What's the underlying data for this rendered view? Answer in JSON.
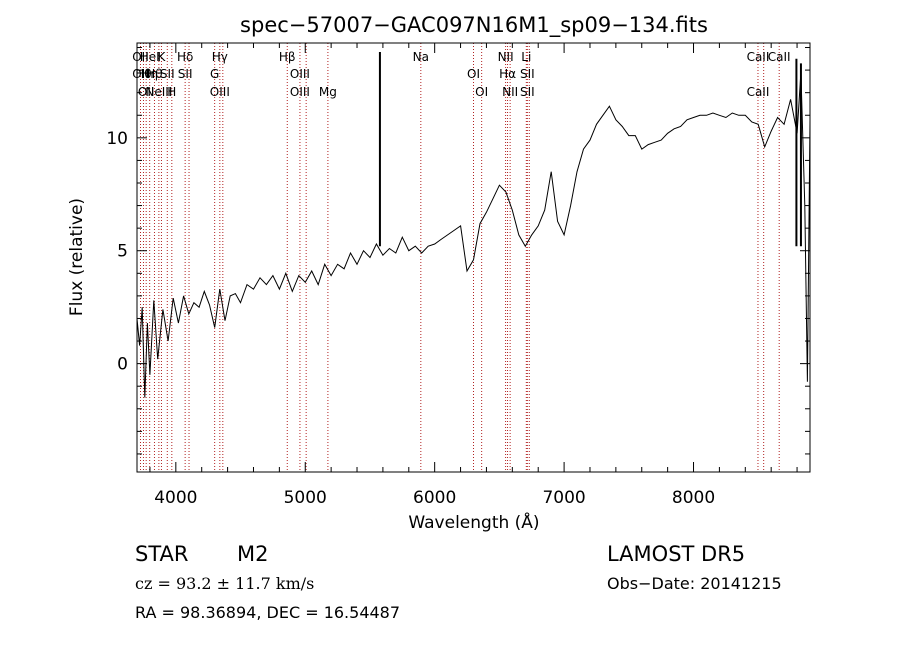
{
  "chart_data": {
    "type": "line",
    "title": "spec−57007−GAC097N16M1_sp09−134.fits",
    "xlabel": "Wavelength (Å)",
    "ylabel": "Flux (relative)",
    "xlim": [
      3700,
      8900
    ],
    "ylim": [
      -4.8,
      14.2
    ],
    "xticks": [
      4000,
      5000,
      6000,
      7000,
      8000
    ],
    "yticks": [
      0,
      5,
      10
    ],
    "grid": false,
    "line_color": "#000000",
    "marker_color": "#b22222",
    "spectrum": {
      "x": [
        3700,
        3720,
        3740,
        3760,
        3780,
        3800,
        3830,
        3860,
        3900,
        3940,
        3980,
        4020,
        4060,
        4100,
        4140,
        4180,
        4220,
        4260,
        4300,
        4340,
        4380,
        4420,
        4460,
        4500,
        4550,
        4600,
        4650,
        4700,
        4750,
        4800,
        4850,
        4900,
        4950,
        5000,
        5050,
        5100,
        5150,
        5200,
        5250,
        5300,
        5350,
        5400,
        5450,
        5500,
        5550,
        5600,
        5650,
        5700,
        5750,
        5800,
        5850,
        5900,
        5950,
        6000,
        6050,
        6100,
        6150,
        6200,
        6250,
        6300,
        6350,
        6400,
        6450,
        6500,
        6550,
        6600,
        6650,
        6700,
        6750,
        6800,
        6850,
        6900,
        6950,
        7000,
        7050,
        7100,
        7150,
        7200,
        7250,
        7300,
        7350,
        7400,
        7450,
        7500,
        7550,
        7600,
        7650,
        7700,
        7750,
        7800,
        7850,
        7900,
        7950,
        8000,
        8050,
        8100,
        8150,
        8200,
        8250,
        8300,
        8350,
        8400,
        8450,
        8500,
        8550,
        8600,
        8650,
        8700,
        8750,
        8800,
        8830,
        8860,
        8880,
        8900
      ],
      "y": [
        2.0,
        0.8,
        2.5,
        -1.5,
        1.8,
        -0.5,
        2.8,
        0.2,
        2.4,
        1.0,
        2.9,
        1.8,
        3.0,
        2.2,
        2.7,
        2.5,
        3.2,
        2.6,
        1.6,
        3.3,
        1.9,
        3.0,
        3.1,
        2.7,
        3.5,
        3.3,
        3.8,
        3.5,
        3.9,
        3.3,
        4.0,
        3.2,
        3.9,
        3.6,
        4.1,
        3.5,
        4.4,
        3.9,
        4.4,
        4.2,
        4.9,
        4.4,
        5.0,
        4.7,
        5.3,
        4.8,
        5.1,
        4.9,
        5.6,
        5.0,
        5.2,
        4.9,
        5.2,
        5.3,
        5.5,
        5.7,
        5.9,
        6.1,
        4.1,
        4.6,
        6.2,
        6.7,
        7.3,
        7.9,
        7.6,
        6.8,
        5.7,
        5.2,
        5.7,
        6.1,
        6.8,
        8.5,
        6.3,
        5.7,
        7.0,
        8.5,
        9.5,
        9.9,
        10.6,
        11.0,
        11.4,
        10.8,
        10.5,
        10.1,
        10.1,
        9.5,
        9.7,
        9.8,
        9.9,
        10.2,
        10.4,
        10.5,
        10.8,
        10.9,
        11.0,
        11.0,
        11.1,
        11.0,
        10.9,
        11.1,
        11.0,
        11.0,
        10.7,
        10.6,
        9.6,
        10.3,
        10.9,
        10.6,
        11.7,
        10.2,
        12.9,
        7.0,
        -0.8,
        10.8
      ]
    },
    "spikes": [
      {
        "x": 5577,
        "y": 13.8
      },
      {
        "x": 8795,
        "y": 13.5
      },
      {
        "x": 8830,
        "y": 13.3
      }
    ],
    "lines": [
      {
        "x": 3727,
        "labels": [
          "OII",
          "OII"
        ]
      },
      {
        "x": 3750,
        "labels": [
          "Hθ"
        ]
      },
      {
        "x": 3771,
        "labels": [
          "OII"
        ]
      },
      {
        "x": 3798,
        "labels": [
          "HeI",
          "Hη"
        ]
      },
      {
        "x": 3835,
        "labels": [
          "Hθ"
        ]
      },
      {
        "x": 3869,
        "labels": [
          "NeIII"
        ]
      },
      {
        "x": 3889,
        "labels": [
          "K"
        ]
      },
      {
        "x": 3934,
        "labels": [
          "SII"
        ]
      },
      {
        "x": 3969,
        "labels": [
          "H"
        ]
      },
      {
        "x": 4072,
        "labels": [
          "Hδ",
          "SII"
        ]
      },
      {
        "x": 4102,
        "labels": []
      },
      {
        "x": 4300,
        "labels": [
          "G"
        ]
      },
      {
        "x": 4340,
        "labels": [
          "OIII",
          "Hγ"
        ]
      },
      {
        "x": 4363,
        "labels": []
      },
      {
        "x": 4861,
        "labels": [
          "Hβ"
        ]
      },
      {
        "x": 4959,
        "labels": [
          "OIII",
          "OIII"
        ]
      },
      {
        "x": 5007,
        "labels": []
      },
      {
        "x": 5175,
        "labels": [
          "Mg"
        ]
      },
      {
        "x": 5893,
        "labels": [
          "Na"
        ]
      },
      {
        "x": 6300,
        "labels": [
          "OI"
        ]
      },
      {
        "x": 6363,
        "labels": [
          "OI"
        ]
      },
      {
        "x": 6548,
        "labels": [
          "NII"
        ]
      },
      {
        "x": 6563,
        "labels": [
          "Hα"
        ]
      },
      {
        "x": 6583,
        "labels": [
          "NII"
        ]
      },
      {
        "x": 6708,
        "labels": [
          "Li"
        ]
      },
      {
        "x": 6716,
        "labels": [
          "SII",
          "SII"
        ]
      },
      {
        "x": 6731,
        "labels": []
      },
      {
        "x": 8498,
        "labels": [
          "CaII",
          "CaII"
        ]
      },
      {
        "x": 8542,
        "labels": []
      },
      {
        "x": 8662,
        "labels": [
          "CaII"
        ]
      }
    ]
  },
  "footer": {
    "object_class": "STAR",
    "subclass": "M2",
    "survey": "LAMOST DR5",
    "cz": "cz = 93.2 ± 11.7 km/s",
    "obs_date": "Obs−Date: 20141215",
    "coords": "RA =  98.36894, DEC =  16.54487"
  }
}
